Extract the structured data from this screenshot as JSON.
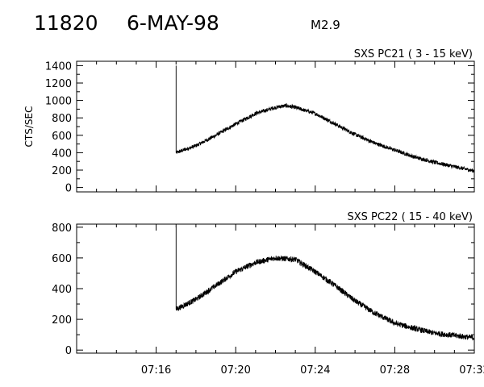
{
  "header": {
    "flare_id": "11820",
    "date": "6-MAY-98",
    "goes_class": "M2.9"
  },
  "chart_data": [
    {
      "type": "line",
      "title": "SXS PC21  (  3 - 15 keV)",
      "ylabel": "CTS/SEC",
      "xlabel": "",
      "xlim": [
        "07:12:00",
        "07:32:00"
      ],
      "ylim": [
        -50,
        1450
      ],
      "yticks": [
        0,
        200,
        400,
        600,
        800,
        1000,
        1200,
        1400
      ],
      "xticks": [
        "07:16",
        "07:20",
        "07:24",
        "07:28",
        "07:32"
      ],
      "show_xtick_labels": false,
      "series": [
        {
          "start_time": "07:17:00",
          "spike_to": 1400,
          "profile": [
            {
              "t": "07:17:00",
              "v": 400
            },
            {
              "t": "07:18:00",
              "v": 480
            },
            {
              "t": "07:19:00",
              "v": 600
            },
            {
              "t": "07:20:00",
              "v": 730
            },
            {
              "t": "07:21:00",
              "v": 850
            },
            {
              "t": "07:22:00",
              "v": 920
            },
            {
              "t": "07:22:30",
              "v": 940
            },
            {
              "t": "07:23:00",
              "v": 920
            },
            {
              "t": "07:24:00",
              "v": 850
            },
            {
              "t": "07:25:00",
              "v": 730
            },
            {
              "t": "07:26:00",
              "v": 610
            },
            {
              "t": "07:27:00",
              "v": 510
            },
            {
              "t": "07:28:00",
              "v": 430
            },
            {
              "t": "07:29:00",
              "v": 350
            },
            {
              "t": "07:30:00",
              "v": 290
            },
            {
              "t": "07:31:00",
              "v": 240
            },
            {
              "t": "07:32:00",
              "v": 190
            }
          ],
          "noise": 22
        }
      ]
    },
    {
      "type": "line",
      "title": "SXS PC22  ( 15 - 40 keV)",
      "ylabel": "",
      "xlabel": "",
      "xlim": [
        "07:12:00",
        "07:32:00"
      ],
      "ylim": [
        -20,
        820
      ],
      "yticks": [
        0,
        200,
        400,
        600,
        800
      ],
      "xticks": [
        "07:16",
        "07:20",
        "07:24",
        "07:28",
        "07:32"
      ],
      "show_xtick_labels": true,
      "series": [
        {
          "start_time": "07:17:00",
          "spike_to": 800,
          "profile": [
            {
              "t": "07:17:00",
              "v": 265
            },
            {
              "t": "07:18:00",
              "v": 330
            },
            {
              "t": "07:19:00",
              "v": 420
            },
            {
              "t": "07:20:00",
              "v": 510
            },
            {
              "t": "07:21:00",
              "v": 570
            },
            {
              "t": "07:22:00",
              "v": 600
            },
            {
              "t": "07:23:00",
              "v": 590
            },
            {
              "t": "07:24:00",
              "v": 510
            },
            {
              "t": "07:25:00",
              "v": 420
            },
            {
              "t": "07:26:00",
              "v": 320
            },
            {
              "t": "07:27:00",
              "v": 240
            },
            {
              "t": "07:28:00",
              "v": 175
            },
            {
              "t": "07:29:00",
              "v": 140
            },
            {
              "t": "07:30:00",
              "v": 110
            },
            {
              "t": "07:31:00",
              "v": 95
            },
            {
              "t": "07:32:00",
              "v": 80
            }
          ],
          "noise": 18
        }
      ]
    }
  ]
}
